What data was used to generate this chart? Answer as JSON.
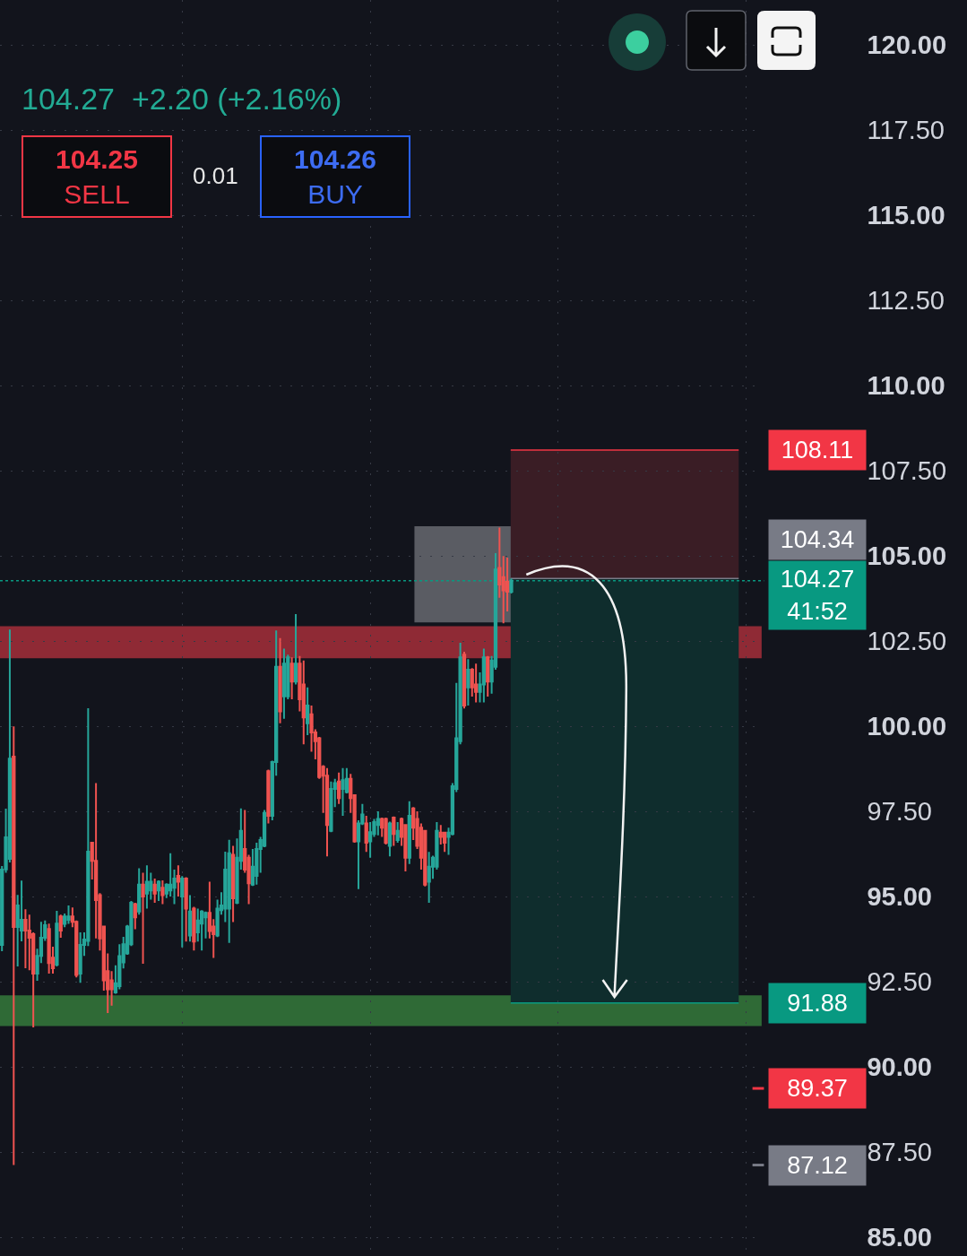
{
  "chart_data": {
    "type": "candlestick",
    "subtitle": "104.27  +2.20 (+2.16%)",
    "annotations": [
      "104.25\nSELL",
      "0.01",
      "104.26\nBUY"
    ],
    "categories": [
      null,
      null,
      null,
      null,
      null,
      null,
      null,
      null,
      null,
      null,
      null,
      null,
      null,
      null,
      null,
      null,
      null,
      null,
      null,
      null,
      null,
      null,
      null,
      null,
      null,
      null,
      null,
      null,
      null,
      null,
      null,
      null,
      null,
      null,
      null,
      null,
      null,
      null,
      null,
      null,
      null,
      null,
      null,
      null,
      null,
      null,
      null,
      null,
      null,
      null,
      null,
      null,
      null,
      null,
      null,
      null,
      null,
      null,
      null,
      null,
      null,
      null,
      null,
      null,
      null,
      null,
      null,
      null,
      null,
      null,
      null,
      null,
      null,
      null,
      null,
      null,
      null,
      null,
      null,
      null,
      null,
      null,
      null,
      null,
      null,
      null,
      null,
      null,
      null,
      null,
      null,
      null,
      null,
      null,
      null,
      null,
      null,
      null,
      null,
      null,
      null,
      null,
      null,
      null,
      null,
      null,
      null,
      null,
      null,
      null,
      null,
      null,
      null,
      null,
      null,
      null,
      null,
      null,
      null,
      null,
      null,
      null,
      null,
      null,
      null,
      null,
      null,
      null,
      null,
      null,
      null,
      null,
      null,
      null,
      null,
      null,
      null,
      null,
      null,
      null,
      null,
      null,
      null,
      null,
      null,
      null,
      null,
      null,
      null,
      null,
      null,
      null,
      null,
      null,
      null,
      null,
      null,
      null,
      null,
      null,
      null,
      null,
      null,
      null,
      null,
      null,
      null,
      null,
      null,
      null,
      null,
      null,
      null,
      null,
      null,
      null,
      null,
      null,
      null,
      null,
      null,
      null,
      null,
      null,
      null,
      null,
      null,
      null,
      null,
      null,
      null,
      null,
      null,
      null,
      null
    ],
    "ohlc": [
      [
        93.58,
        95.9,
        93.4,
        95.79
      ],
      [
        95.8,
        97.58,
        95.7,
        96.74
      ],
      [
        96.11,
        102.84,
        96.0,
        99.05
      ],
      [
        99.11,
        100.0,
        87.12,
        94.11
      ],
      [
        94.11,
        95.05,
        92.95,
        94.74
      ],
      [
        94.0,
        95.47,
        93.69,
        94.32
      ],
      [
        94.32,
        94.63,
        92.9,
        94.0
      ],
      [
        94.0,
        94.47,
        92.84,
        93.79
      ],
      [
        93.9,
        93.95,
        91.16,
        92.74
      ],
      [
        92.74,
        93.47,
        92.53,
        93.26
      ],
      [
        93.26,
        94.26,
        93.05,
        93.79
      ],
      [
        93.79,
        94.3,
        93.7,
        94.16
      ],
      [
        94.05,
        94.21,
        92.74,
        93.05
      ],
      [
        93.21,
        93.53,
        92.74,
        92.9
      ],
      [
        93.0,
        94.58,
        92.95,
        94.21
      ],
      [
        94.42,
        94.47,
        93.79,
        94.0
      ],
      [
        94.2,
        94.5,
        94.1,
        94.42
      ],
      [
        94.32,
        94.74,
        94.2,
        94.42
      ],
      [
        94.42,
        94.68,
        94.1,
        94.26
      ],
      [
        94.26,
        94.3,
        92.63,
        92.7
      ],
      [
        92.74,
        93.95,
        92.47,
        93.58
      ],
      [
        93.58,
        93.95,
        93.26,
        93.74
      ],
      [
        93.7,
        100.53,
        93.55,
        96.32
      ],
      [
        96.58,
        96.6,
        95.5,
        96.05
      ],
      [
        96.05,
        98.33,
        93.77,
        94.9
      ],
      [
        95.04,
        95.1,
        93.42,
        93.77
      ],
      [
        94.12,
        94.15,
        92.24,
        92.54
      ],
      [
        92.81,
        93.33,
        91.58,
        92.28
      ],
      [
        92.54,
        92.81,
        91.8,
        92.28
      ],
      [
        92.19,
        92.98,
        92.15,
        92.46
      ],
      [
        92.37,
        93.6,
        92.28,
        93.25
      ],
      [
        93.07,
        93.82,
        92.89,
        93.6
      ],
      [
        93.33,
        94.17,
        93.29,
        94.12
      ],
      [
        93.6,
        94.87,
        93.55,
        94.82
      ],
      [
        94.78,
        94.82,
        94.04,
        94.39
      ],
      [
        94.56,
        95.83,
        94.47,
        95.35
      ],
      [
        95.35,
        95.7,
        93.03,
        95.0
      ],
      [
        95.09,
        95.92,
        94.65,
        95.44
      ],
      [
        95.18,
        95.7,
        94.91,
        95.44
      ],
      [
        95.35,
        95.53,
        94.82,
        95.09
      ],
      [
        95.18,
        95.48,
        94.87,
        95.44
      ],
      [
        95.26,
        95.48,
        94.78,
        95.04
      ],
      [
        95.09,
        95.39,
        94.96,
        95.35
      ],
      [
        95.18,
        96.27,
        95.0,
        95.35
      ],
      [
        95.26,
        95.79,
        94.78,
        95.53
      ],
      [
        95.61,
        95.92,
        95.0,
        95.44
      ],
      [
        95.0,
        95.6,
        93.51,
        95.53
      ],
      [
        95.53,
        95.57,
        93.68,
        94.65
      ],
      [
        93.86,
        95.04,
        93.68,
        94.56
      ],
      [
        94.65,
        94.7,
        93.42,
        93.68
      ],
      [
        93.95,
        94.65,
        93.68,
        94.3
      ],
      [
        94.21,
        94.6,
        93.42,
        94.56
      ],
      [
        94.39,
        94.56,
        93.77,
        94.52
      ],
      [
        94.52,
        95.44,
        93.77,
        93.99
      ],
      [
        94.12,
        94.34,
        93.2,
        93.9
      ],
      [
        93.86,
        94.91,
        93.81,
        94.65
      ],
      [
        94.6,
        95.13,
        94.47,
        94.74
      ],
      [
        94.65,
        96.32,
        94.25,
        95.79
      ],
      [
        94.65,
        96.67,
        93.64,
        96.27
      ],
      [
        96.23,
        96.49,
        94.25,
        94.95
      ],
      [
        94.82,
        96.71,
        94.78,
        96.14
      ],
      [
        96.05,
        97.59,
        95.79,
        96.93
      ],
      [
        96.4,
        97.54,
        95.7,
        95.79
      ],
      [
        96.14,
        96.23,
        94.78,
        95.39
      ],
      [
        95.35,
        96.4,
        95.31,
        95.88
      ],
      [
        95.61,
        96.58,
        95.35,
        96.4
      ],
      [
        96.4,
        96.75,
        95.7,
        96.66
      ],
      [
        96.49,
        97.54,
        96.45,
        97.46
      ],
      [
        98.68,
        98.73,
        97.15,
        97.37
      ],
      [
        97.37,
        98.99,
        97.24,
        98.95
      ],
      [
        98.95,
        102.81,
        98.55,
        101.75
      ],
      [
        101.75,
        102.59,
        100.09,
        100.44
      ],
      [
        100.88,
        102.28,
        100.22,
        101.84
      ],
      [
        100.88,
        102.1,
        100.79,
        102.02
      ],
      [
        101.84,
        102.02,
        100.79,
        101.31
      ],
      [
        101.31,
        103.29,
        101.23,
        101.84
      ],
      [
        101.84,
        102.06,
        100.44,
        100.79
      ],
      [
        101.23,
        101.93,
        99.47,
        100.26
      ],
      [
        100.09,
        101.14,
        99.74,
        100.61
      ],
      [
        100.35,
        100.61,
        99.25,
        99.82
      ],
      [
        99.82,
        99.91,
        99.03,
        99.56
      ],
      [
        99.65,
        99.69,
        98.46,
        98.51
      ],
      [
        98.81,
        98.86,
        97.46,
        98.55
      ],
      [
        98.55,
        98.77,
        96.18,
        97.1
      ],
      [
        96.93,
        98.38,
        96.89,
        98.16
      ],
      [
        98.16,
        98.46,
        97.63,
        98.33
      ],
      [
        98.38,
        98.64,
        97.72,
        97.89
      ],
      [
        98.16,
        98.77,
        97.37,
        98.42
      ],
      [
        98.07,
        98.77,
        98.03,
        98.46
      ],
      [
        98.46,
        98.6,
        97.46,
        97.89
      ],
      [
        97.98,
        98.0,
        96.58,
        96.62
      ],
      [
        96.62,
        97.24,
        95.22,
        97.15
      ],
      [
        97.15,
        97.72,
        97.1,
        97.41
      ],
      [
        97.15,
        97.37,
        96.31,
        96.58
      ],
      [
        96.62,
        97.19,
        96.14,
        96.89
      ],
      [
        96.84,
        97.28,
        96.75,
        97.19
      ],
      [
        97.1,
        97.5,
        96.8,
        97.28
      ],
      [
        97.28,
        97.32,
        96.75,
        97.02
      ],
      [
        97.28,
        97.32,
        96.53,
        96.58
      ],
      [
        96.49,
        97.2,
        96.18,
        97.15
      ],
      [
        97.32,
        97.35,
        96.49,
        96.84
      ],
      [
        96.66,
        97.19,
        96.58,
        96.93
      ],
      [
        97.28,
        97.32,
        96.49,
        96.75
      ],
      [
        97.1,
        97.12,
        95.74,
        96.14
      ],
      [
        96.14,
        97.8,
        95.96,
        97.37
      ],
      [
        97.59,
        97.63,
        96.66,
        97.02
      ],
      [
        97.28,
        97.5,
        96.4,
        96.49
      ],
      [
        97.02,
        97.15,
        95.79,
        96.14
      ],
      [
        96.93,
        96.95,
        95.3,
        95.35
      ],
      [
        95.44,
        96.31,
        94.82,
        95.88
      ],
      [
        95.88,
        96.2,
        95.52,
        96.14
      ],
      [
        95.88,
        97.19,
        95.79,
        96.93
      ],
      [
        96.88,
        97.1,
        96.53,
        96.75
      ],
      [
        96.88,
        96.9,
        96.31,
        96.58
      ],
      [
        96.75,
        97.02,
        96.23,
        96.88
      ],
      [
        96.84,
        98.33,
        96.8,
        98.24
      ],
      [
        98.16,
        101.27,
        98.07,
        99.65
      ],
      [
        99.56,
        102.45,
        99.47,
        102.02
      ],
      [
        102.1,
        102.19,
        100.52,
        100.61
      ],
      [
        101.14,
        101.97,
        100.61,
        101.66
      ],
      [
        101.66,
        101.71,
        100.87,
        101.14
      ],
      [
        101.23,
        101.84,
        100.7,
        101.01
      ],
      [
        101.01,
        101.58,
        100.7,
        101.23
      ],
      [
        101.23,
        102.28,
        100.7,
        102.02
      ],
      [
        102.02,
        102.06,
        100.87,
        101.31
      ],
      [
        101.31,
        102.06,
        100.96,
        101.93
      ],
      [
        101.75,
        105.08,
        101.66,
        104.6
      ],
      [
        104.65,
        105.83,
        103.77,
        104.16
      ],
      [
        104.38,
        105.0,
        103.02,
        103.99
      ],
      [
        104.25,
        104.95,
        103.37,
        103.95
      ],
      [
        103.95,
        104.34,
        103.9,
        104.27
      ],
      null,
      null,
      null,
      null,
      null,
      null,
      null,
      null,
      null,
      null,
      null,
      null,
      null,
      null,
      null,
      null,
      null,
      null,
      null,
      null,
      null,
      null,
      null,
      null,
      null,
      null,
      null,
      null,
      null,
      null,
      null,
      null,
      null,
      null,
      null,
      null,
      null,
      null,
      null,
      null,
      null,
      null,
      null,
      null,
      null,
      null,
      null,
      null,
      null,
      null,
      null,
      null,
      null,
      null,
      null,
      null,
      null,
      null,
      null,
      null,
      null,
      null,
      null,
      null
    ],
    "colors": [
      "#26a69a",
      "#26a69a",
      "#26a69a",
      "#ef5350",
      "#26a69a",
      "#26a69a",
      "#ef5350",
      "#ef5350",
      "#ef5350",
      "#26a69a",
      "#26a69a",
      "#26a69a",
      "#ef5350",
      "#ef5350",
      "#26a69a",
      "#ef5350",
      "#26a69a",
      "#26a69a",
      "#ef5350",
      "#ef5350",
      "#26a69a",
      "#26a69a",
      "#26a69a",
      "#ef5350",
      "#ef5350",
      "#ef5350",
      "#ef5350",
      "#ef5350",
      "#ef5350",
      "#26a69a",
      "#26a69a",
      "#26a69a",
      "#26a69a",
      "#26a69a",
      "#ef5350",
      "#26a69a",
      "#ef5350",
      "#26a69a",
      "#26a69a",
      "#ef5350",
      "#26a69a",
      "#ef5350",
      "#26a69a",
      "#26a69a",
      "#26a69a",
      "#ef5350",
      "#26a69a",
      "#ef5350",
      "#26a69a",
      "#ef5350",
      "#26a69a",
      "#26a69a",
      "#26a69a",
      "#ef5350",
      "#ef5350",
      "#26a69a",
      "#26a69a",
      "#26a69a",
      "#26a69a",
      "#ef5350",
      "#26a69a",
      "#26a69a",
      "#ef5350",
      "#ef5350",
      "#26a69a",
      "#26a69a",
      "#26a69a",
      "#26a69a",
      "#ef5350",
      "#26a69a",
      "#26a69a",
      "#ef5350",
      "#26a69a",
      "#26a69a",
      "#ef5350",
      "#26a69a",
      "#ef5350",
      "#ef5350",
      "#26a69a",
      "#ef5350",
      "#ef5350",
      "#ef5350",
      "#ef5350",
      "#ef5350",
      "#26a69a",
      "#26a69a",
      "#ef5350",
      "#26a69a",
      "#26a69a",
      "#ef5350",
      "#ef5350",
      "#26a69a",
      "#26a69a",
      "#ef5350",
      "#26a69a",
      "#26a69a",
      "#26a69a",
      "#ef5350",
      "#ef5350",
      "#26a69a",
      "#ef5350",
      "#26a69a",
      "#ef5350",
      "#ef5350",
      "#26a69a",
      "#ef5350",
      "#ef5350",
      "#ef5350",
      "#ef5350",
      "#26a69a",
      "#26a69a",
      "#26a69a",
      "#ef5350",
      "#ef5350",
      "#26a69a",
      "#26a69a",
      "#26a69a",
      "#26a69a",
      "#ef5350",
      "#26a69a",
      "#ef5350",
      "#ef5350",
      "#26a69a",
      "#26a69a",
      "#ef5350",
      "#26a69a",
      "#26a69a",
      "#ef5350",
      "#ef5350",
      "#ef5350",
      "#26a69a",
      null,
      null,
      null,
      null,
      null,
      null,
      null,
      null,
      null,
      null,
      null,
      null,
      null,
      null,
      null,
      null,
      null,
      null,
      null,
      null,
      null,
      null,
      null,
      null,
      null,
      null,
      null,
      null,
      null,
      null,
      null,
      null,
      null,
      null,
      null,
      null,
      null,
      null,
      null,
      null,
      null,
      null,
      null,
      null,
      null,
      null,
      null,
      null,
      null,
      null,
      null,
      null,
      null,
      null,
      null,
      null,
      null,
      null,
      null,
      null,
      null,
      null,
      null,
      null
    ],
    "ylim": [
      84.45,
      121.32
    ],
    "yticks": [
      {
        "value": 85,
        "label": "85.00"
      },
      {
        "value": 87.5,
        "label": "87.50"
      },
      {
        "value": 90,
        "label": "90.00"
      },
      {
        "value": 92.5,
        "label": "92.50"
      },
      {
        "value": 95,
        "label": "95.00"
      },
      {
        "value": 97.5,
        "label": "97.50"
      },
      {
        "value": 100,
        "label": "100.00"
      },
      {
        "value": 102.5,
        "label": "102.50"
      },
      {
        "value": 105,
        "label": "105.00"
      },
      {
        "value": 107.5,
        "label": "107.50"
      },
      {
        "value": 110,
        "label": "110.00"
      },
      {
        "value": 112.5,
        "label": "112.50"
      },
      {
        "value": 115,
        "label": "115.00"
      },
      {
        "value": 117.5,
        "label": "117.50"
      },
      {
        "value": 120,
        "label": "120.00"
      }
    ],
    "tick_labels": "y",
    "grid": true,
    "ref_lines": [
      {
        "axis": "y",
        "value": 108.11,
        "label": "108.11",
        "color": "#f23645"
      },
      {
        "axis": "y",
        "value": 104.34,
        "label": "104.34",
        "color": "#787b86"
      },
      {
        "axis": "y",
        "value": 104.27,
        "label": "104.27\n41:52",
        "color": "#089981",
        "line_style": "dotted"
      },
      {
        "axis": "y",
        "value": 91.88,
        "label": "91.88",
        "color": "#089981"
      },
      {
        "axis": "y",
        "value": 89.37,
        "label": "89.37",
        "color": "#f23645"
      },
      {
        "axis": "y",
        "value": 87.12,
        "label": "87.12",
        "color": "#787b86"
      }
    ],
    "bands": [
      {
        "axis": "y",
        "from": 102.0,
        "to": 102.94,
        "color": "#8f2a35"
      },
      {
        "axis": "y",
        "from": 91.2,
        "to": 92.1,
        "color": "#2f6a36"
      },
      {
        "axis": "y",
        "from": 103.05,
        "to": 105.87,
        "color": "#5a5c63"
      },
      {
        "axis": "y",
        "from": 104.34,
        "to": 108.11,
        "color": "#3a1d25"
      },
      {
        "axis": "y",
        "from": 91.88,
        "to": 104.34,
        "color": "#0f2d2d"
      }
    ]
  }
}
